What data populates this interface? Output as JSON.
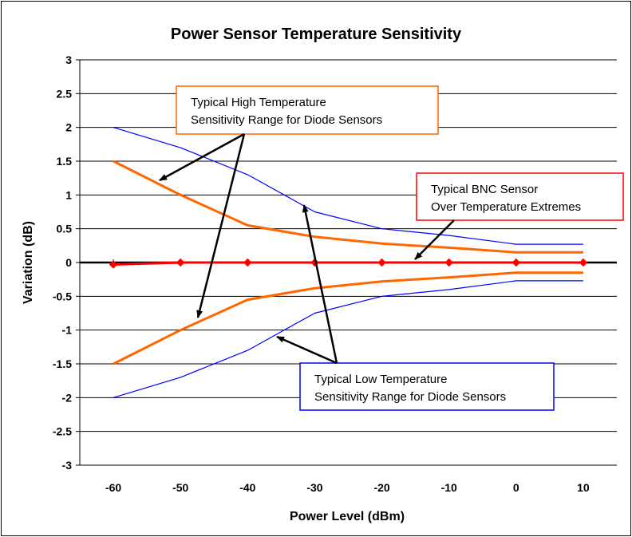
{
  "chart_data": {
    "type": "line",
    "title": "Power Sensor Temperature Sensitivity",
    "xlabel": "Power Level (dBm)",
    "ylabel": "Variation (dB)",
    "xlim": [
      -65,
      15
    ],
    "ylim": [
      -3,
      3
    ],
    "categories": [
      "-60",
      "-50",
      "-40",
      "-30",
      "-20",
      "-10",
      "0",
      "10"
    ],
    "x": [
      -60,
      -50,
      -40,
      -30,
      -20,
      -10,
      0,
      10
    ],
    "y_ticks": [
      3,
      2.5,
      2,
      1.5,
      1,
      0.5,
      0,
      -0.5,
      -1,
      -1.5,
      -2,
      -2.5,
      -3
    ],
    "y_tick_labels": [
      "3",
      "2.5",
      "2",
      "1.5",
      "1",
      "0.5",
      "0",
      "-0.5",
      "-1",
      "-1.5",
      "-2",
      "-2.5",
      "-3"
    ],
    "grid": true,
    "series": [
      {
        "color": "#0000ff",
        "x": [
          -60,
          -50,
          -40,
          -30,
          -20,
          -10,
          0,
          10
        ],
        "values": [
          2,
          1.7,
          1.3,
          0.75,
          0.5,
          0.4,
          0.27,
          0.27
        ]
      },
      {
        "color": "#0000ff",
        "x": [
          -60,
          -50,
          -40,
          -30,
          -20,
          -10,
          0,
          10
        ],
        "values": [
          -2,
          -1.7,
          -1.3,
          -0.75,
          -0.5,
          -0.4,
          -0.27,
          -0.27
        ]
      },
      {
        "color": "#ff6600",
        "x": [
          -60,
          -50,
          -40,
          -30,
          -20,
          -10,
          0,
          10
        ],
        "values": [
          1.5,
          1.0,
          0.55,
          0.38,
          0.28,
          0.22,
          0.15,
          0.15
        ]
      },
      {
        "color": "#ff6600",
        "x": [
          -60,
          -50,
          -40,
          -30,
          -20,
          -10,
          0,
          10
        ],
        "values": [
          -1.5,
          -1.0,
          -0.55,
          -0.38,
          -0.28,
          -0.22,
          -0.15,
          -0.15
        ]
      },
      {
        "color": "#ff0000",
        "markers": "diamond",
        "x": [
          -60,
          -50,
          -40,
          -30,
          -20,
          -10,
          0,
          10
        ],
        "values": [
          -0.03,
          0,
          0,
          0,
          0,
          0,
          0,
          0
        ]
      }
    ],
    "annotations": [
      {
        "lines": [
          "Typical High Temperature",
          "Sensitivity Range for Diode Sensors"
        ],
        "border_color": "#ff6600"
      },
      {
        "lines": [
          "Typical BNC Sensor",
          "Over Temperature Extremes"
        ],
        "border_color": "#ff0000"
      },
      {
        "lines": [
          "Typical Low Temperature",
          "Sensitivity Range for Diode Sensors"
        ],
        "border_color": "#0000ff"
      }
    ]
  }
}
